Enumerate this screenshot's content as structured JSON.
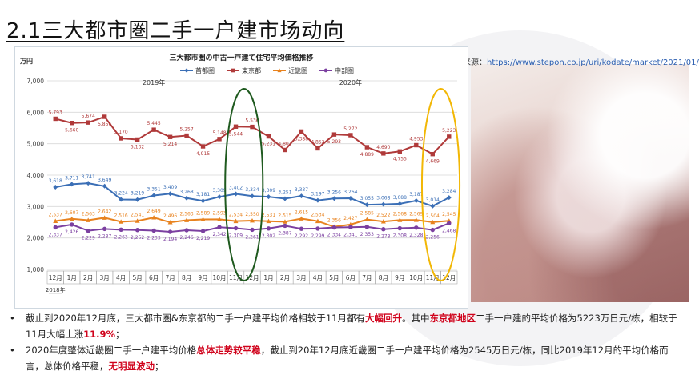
{
  "slide": {
    "title": "2.1三大都市圏二手一户建市场动向",
    "source_label": "数据来源：",
    "source_url": "https://www.stepon.co.jp/uri/kodate/market/2021/01/"
  },
  "chart_data": {
    "type": "line",
    "title": "三大都市圏の中古一戸建て住宅平均価格推移",
    "ylabel": "万円",
    "ylim": [
      1000,
      7000
    ],
    "yticks": [
      "1,000",
      "2,000",
      "3,000",
      "4,000",
      "5,000",
      "6,000",
      "7,000"
    ],
    "categories": [
      "12月",
      "1月",
      "2月",
      "3月",
      "4月",
      "5月",
      "6月",
      "7月",
      "8月",
      "9月",
      "10月",
      "11月",
      "12月",
      "1月",
      "2月",
      "3月",
      "4月",
      "5月",
      "6月",
      "7月",
      "8月",
      "9月",
      "10月",
      "11月",
      "12月"
    ],
    "first_year_label": "2018年",
    "year_labels": [
      "2019年",
      "2020年"
    ],
    "grid": true,
    "legend_position": "top",
    "series": [
      {
        "name": "首都圏",
        "color": "#3b6fb6",
        "marker": "diamond",
        "values": [
          3618,
          3711,
          3741,
          3649,
          3224,
          3219,
          3351,
          3409,
          3268,
          3181,
          3309,
          3402,
          3334,
          3309,
          3251,
          3337,
          3197,
          3256,
          3264,
          3055,
          3068,
          3088,
          3187,
          3014,
          3284
        ]
      },
      {
        "name": "東京都",
        "color": "#b03a3a",
        "marker": "square",
        "values": [
          5793,
          5660,
          5674,
          5856,
          5170,
          5132,
          5445,
          5214,
          5257,
          4915,
          5148,
          5544,
          5536,
          5231,
          4801,
          5388,
          4852,
          5293,
          5272,
          4889,
          4690,
          4755,
          4953,
          4669,
          5223
        ]
      },
      {
        "name": "近畿圏",
        "color": "#e8821e",
        "marker": "triangle",
        "values": [
          2537,
          2607,
          2563,
          2642,
          2516,
          2541,
          2649,
          2496,
          2563,
          2589,
          2593,
          2534,
          2550,
          2531,
          2515,
          2615,
          2534,
          2356,
          2427,
          2585,
          2522,
          2568,
          2569,
          2504,
          2545
        ]
      },
      {
        "name": "中部圏",
        "color": "#7b3fa0",
        "marker": "circle",
        "values": [
          2337,
          2426,
          2229,
          2287,
          2263,
          2252,
          2233,
          2194,
          2246,
          2219,
          2342,
          2309,
          2261,
          2302,
          2387,
          2292,
          2299,
          2334,
          2341,
          2353,
          2278,
          2308,
          2328,
          2256,
          2468
        ]
      }
    ],
    "highlights": [
      {
        "from_index": 11,
        "to_index": 12,
        "color": "#1f5a1f"
      },
      {
        "from_index": 23,
        "to_index": 24,
        "color": "#f2b705"
      }
    ]
  },
  "bullets": [
    [
      {
        "t": "截止到2020年12月底，三大都市圏&东京都的二手一户建平均价格相较于11月都有"
      },
      {
        "t": "大幅回升",
        "hl": true
      },
      {
        "t": "。其中"
      },
      {
        "t": "东京都地区",
        "hl": true
      },
      {
        "t": "二手一户建的平均价格为5223万日元/栋，相较于11月大幅上涨"
      },
      {
        "t": "11.9%",
        "hl": true
      },
      {
        "t": "；"
      }
    ],
    [
      {
        "t": "2020年度整体近畿圏二手一户建平均价格"
      },
      {
        "t": "总体走势较平稳",
        "hl": true
      },
      {
        "t": "，截止到20年12月底近畿圏二手一户建平均价格为2545万日元/栋，同比2019年12月的平均价格而言，总体价格平稳，"
      },
      {
        "t": "无明显波动",
        "hl": true
      },
      {
        "t": "；"
      }
    ]
  ],
  "bullet_dot": "•"
}
